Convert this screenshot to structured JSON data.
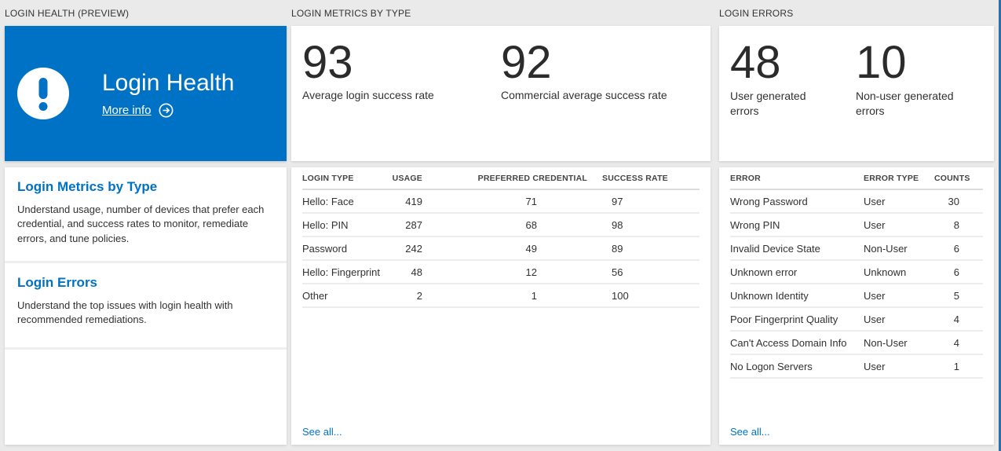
{
  "page": {
    "background": "#eaeaea",
    "window_edge_color": "#2f6fa7"
  },
  "accent_color": "#0072c6",
  "health": {
    "header": "LOGIN HEALTH (PREVIEW)",
    "hero": {
      "title": "Login Health",
      "more_info_label": "More info",
      "background": "#0072c6",
      "icon": "exclamation-circle"
    },
    "links": [
      {
        "title": "Login Metrics by Type",
        "description": "Understand usage, number of devices that prefer each credential, and success rates to monitor, remediate errors, and tune policies."
      },
      {
        "title": "Login Errors",
        "description": "Understand the top issues with login health with recommended remediations."
      }
    ]
  },
  "metrics": {
    "header": "LOGIN METRICS BY TYPE",
    "stats": [
      {
        "value": "93",
        "label": "Average login success rate"
      },
      {
        "value": "92",
        "label": "Commercial average success rate"
      }
    ],
    "table": {
      "columns": [
        "LOGIN TYPE",
        "USAGE",
        "PREFERRED CREDENTIAL",
        "SUCCESS RATE"
      ],
      "rows": [
        [
          "Hello: Face",
          "419",
          "71",
          "97"
        ],
        [
          "Hello: PIN",
          "287",
          "68",
          "98"
        ],
        [
          "Password",
          "242",
          "49",
          "89"
        ],
        [
          "Hello: Fingerprint",
          "48",
          "12",
          "56"
        ],
        [
          "Other",
          "2",
          "1",
          "100"
        ]
      ]
    },
    "see_all_label": "See all..."
  },
  "errors": {
    "header": "LOGIN ERRORS",
    "stats": [
      {
        "value": "48",
        "label": "User generated errors"
      },
      {
        "value": "10",
        "label": "Non-user generated errors"
      }
    ],
    "table": {
      "columns": [
        "ERROR",
        "ERROR TYPE",
        "COUNTS"
      ],
      "rows": [
        [
          "Wrong Password",
          "User",
          "30"
        ],
        [
          "Wrong PIN",
          "User",
          "8"
        ],
        [
          "Invalid Device State",
          "Non-User",
          "6"
        ],
        [
          "Unknown error",
          "Unknown",
          "6"
        ],
        [
          "Unknown Identity",
          "User",
          "5"
        ],
        [
          "Poor Fingerprint Quality",
          "User",
          "4"
        ],
        [
          "Can't Access Domain Info",
          "Non-User",
          "4"
        ],
        [
          "No Logon Servers",
          "User",
          "1"
        ]
      ]
    },
    "see_all_label": "See all..."
  }
}
